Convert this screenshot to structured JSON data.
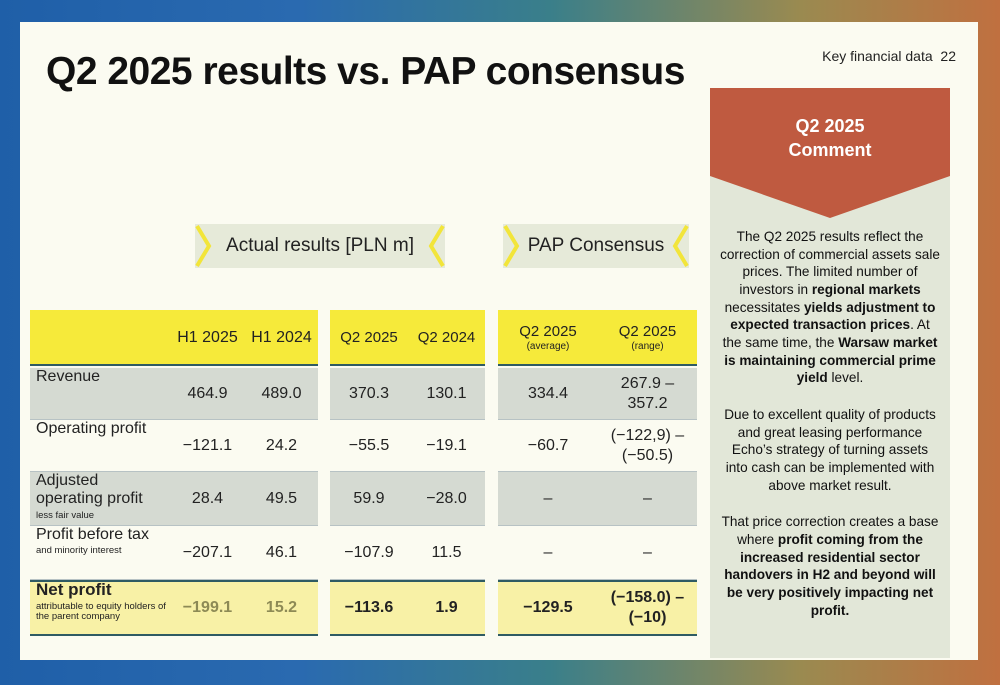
{
  "header": {
    "title": "Q2 2025 results vs. PAP consensus",
    "section": "Key financial data",
    "page": "22"
  },
  "groups": {
    "actual": "Actual results",
    "actual_unit": "[PLN m]",
    "consensus": "PAP Consensus"
  },
  "table": {
    "columns": [
      {
        "label": "H1 2025"
      },
      {
        "label": "H1 2024"
      },
      {
        "label": "Q2 2025"
      },
      {
        "label": "Q2 2024"
      },
      {
        "label": "Q2 2025",
        "sublabel": "(average)"
      },
      {
        "label": "Q2 2025",
        "sublabel": "(range)"
      }
    ],
    "rows": [
      {
        "label": "Revenue",
        "values": [
          "464.9",
          "489.0",
          "370.3",
          "130.1",
          "334.4",
          "267.9 – 357.2"
        ]
      },
      {
        "label": "Operating profit",
        "values": [
          "−121.1",
          "24.2",
          "−55.5",
          "−19.1",
          "−60.7",
          "(−122,9) – (−50.5)"
        ]
      },
      {
        "label": "Adjusted operating profit",
        "sublabel": "less fair value",
        "values": [
          "28.4",
          "49.5",
          "59.9",
          "−28.0",
          "–",
          "–"
        ]
      },
      {
        "label": "Profit before tax",
        "sublabel": "and minority interest",
        "values": [
          "−207.1",
          "46.1",
          "−107.9",
          "11.5",
          "–",
          "–"
        ]
      },
      {
        "label": "Net profit",
        "sublabel": "attributable to equity holders of the parent company",
        "values": [
          "−199.1",
          "15.2",
          "−113.6",
          "1.9",
          "−129.5",
          "(−158.0) – (−10)"
        ]
      }
    ]
  },
  "comment": {
    "title": "Q2 2025",
    "subtitle": "Comment",
    "paragraphs": [
      [
        {
          "text": "The Q2 2025 results reflect the correction of commercial assets sale prices. The limited number of investors in ",
          "bold": false
        },
        {
          "text": "regional markets",
          "bold": true
        },
        {
          "text": " necessitates ",
          "bold": false
        },
        {
          "text": "yields adjustment to expected transaction prices",
          "bold": true
        },
        {
          "text": ". At the same time, the ",
          "bold": false
        },
        {
          "text": "Warsaw market is maintaining commercial prime yield",
          "bold": true
        },
        {
          "text": " level.",
          "bold": false
        }
      ],
      [
        {
          "text": "Due to excellent quality of products and great leasing performance Echo’s strategy of turning assets into cash can be implemented with above market result.",
          "bold": false
        }
      ],
      [
        {
          "text": "That price correction creates a base where ",
          "bold": false
        },
        {
          "text": "profit coming from the increased residential sector handovers in H2 and beyond will be very positively impacting net profit.",
          "bold": true
        }
      ]
    ]
  }
}
